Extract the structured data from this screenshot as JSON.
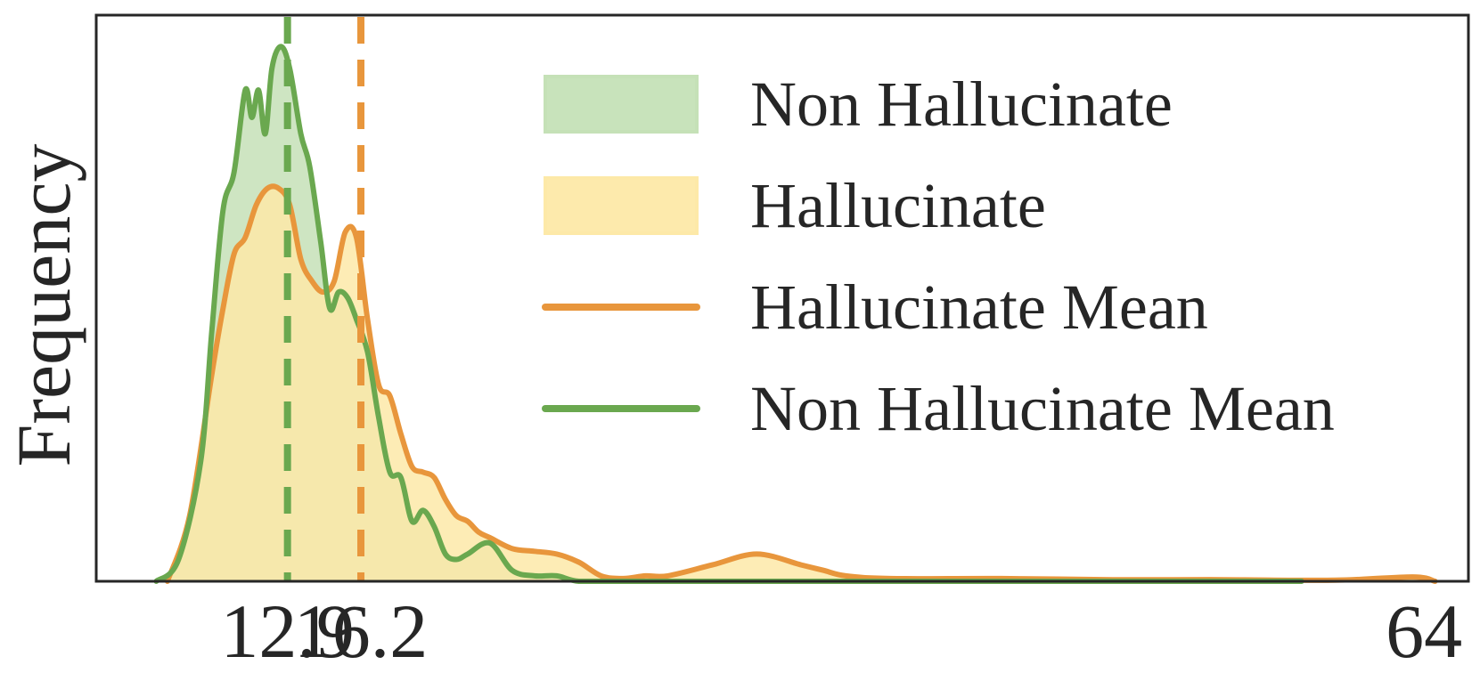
{
  "chart_data": {
    "type": "area",
    "title": "",
    "xlabel": "",
    "ylabel": "Frequency",
    "xlim": [
      4.3,
      66
    ],
    "ylim": [
      0,
      1.0
    ],
    "x_ticks": [
      12.9,
      16.2,
      64
    ],
    "x_tick_labels": [
      "12.9",
      "16.2",
      "64"
    ],
    "y_ticks_shown": false,
    "grid": false,
    "legend_position": "top-right",
    "series": [
      {
        "name": "Non Hallucinate",
        "style": "density",
        "fill_color": "#c5e1b7",
        "line_color": "#6aa84f",
        "x": [
          7.0,
          8.0,
          9.0,
          9.5,
          10.0,
          10.5,
          11.0,
          11.3,
          11.6,
          11.9,
          12.2,
          12.6,
          13.0,
          13.5,
          13.9,
          14.4,
          14.8,
          15.2,
          15.6,
          16.0,
          16.5,
          17.0,
          17.5,
          18.0,
          18.5,
          19.0,
          19.5,
          20.0,
          20.5,
          21.0,
          22.0,
          23.0,
          24.0,
          25.0,
          26.0,
          28.0,
          30.0,
          35.0,
          40.0,
          45.0,
          50.0,
          55.0,
          58.5
        ],
        "y": [
          0.0,
          0.04,
          0.22,
          0.46,
          0.68,
          0.75,
          0.9,
          0.85,
          0.9,
          0.82,
          0.94,
          0.98,
          0.94,
          0.82,
          0.76,
          0.62,
          0.5,
          0.53,
          0.52,
          0.48,
          0.42,
          0.3,
          0.2,
          0.19,
          0.11,
          0.13,
          0.1,
          0.05,
          0.04,
          0.05,
          0.07,
          0.02,
          0.01,
          0.01,
          0.0,
          0.0,
          0.0,
          0.0,
          0.0,
          0.0,
          0.0,
          0.0,
          0.0
        ]
      },
      {
        "name": "Hallucinate",
        "style": "density",
        "fill_color": "#fde9a8",
        "line_color": "#e8963c",
        "x": [
          7.5,
          8.5,
          9.5,
          10.0,
          10.5,
          11.0,
          11.5,
          12.0,
          12.5,
          13.0,
          13.5,
          14.0,
          14.5,
          15.0,
          15.5,
          16.0,
          16.5,
          17.0,
          17.5,
          18.0,
          18.5,
          19.0,
          19.5,
          20.0,
          20.5,
          21.0,
          21.5,
          22.0,
          23.0,
          24.0,
          25.0,
          26.0,
          27.0,
          28.0,
          29.0,
          30.0,
          32.0,
          34.0,
          36.0,
          37.0,
          38.0,
          40.0,
          45.0,
          50.0,
          55.0,
          60.0,
          63.5,
          64.5
        ],
        "y": [
          0.0,
          0.12,
          0.38,
          0.5,
          0.6,
          0.63,
          0.69,
          0.72,
          0.72,
          0.69,
          0.59,
          0.55,
          0.53,
          0.55,
          0.64,
          0.63,
          0.48,
          0.36,
          0.34,
          0.27,
          0.21,
          0.2,
          0.19,
          0.15,
          0.12,
          0.11,
          0.09,
          0.08,
          0.06,
          0.055,
          0.05,
          0.035,
          0.01,
          0.005,
          0.01,
          0.01,
          0.03,
          0.05,
          0.03,
          0.02,
          0.01,
          0.005,
          0.005,
          0.003,
          0.003,
          0.002,
          0.008,
          0.0
        ]
      },
      {
        "name": "Hallucinate Mean",
        "style": "vline",
        "line_color": "#e8963c",
        "value": 16.2
      },
      {
        "name": "Non Hallucinate Mean",
        "style": "vline",
        "line_color": "#6aa84f",
        "value": 12.9
      }
    ]
  }
}
